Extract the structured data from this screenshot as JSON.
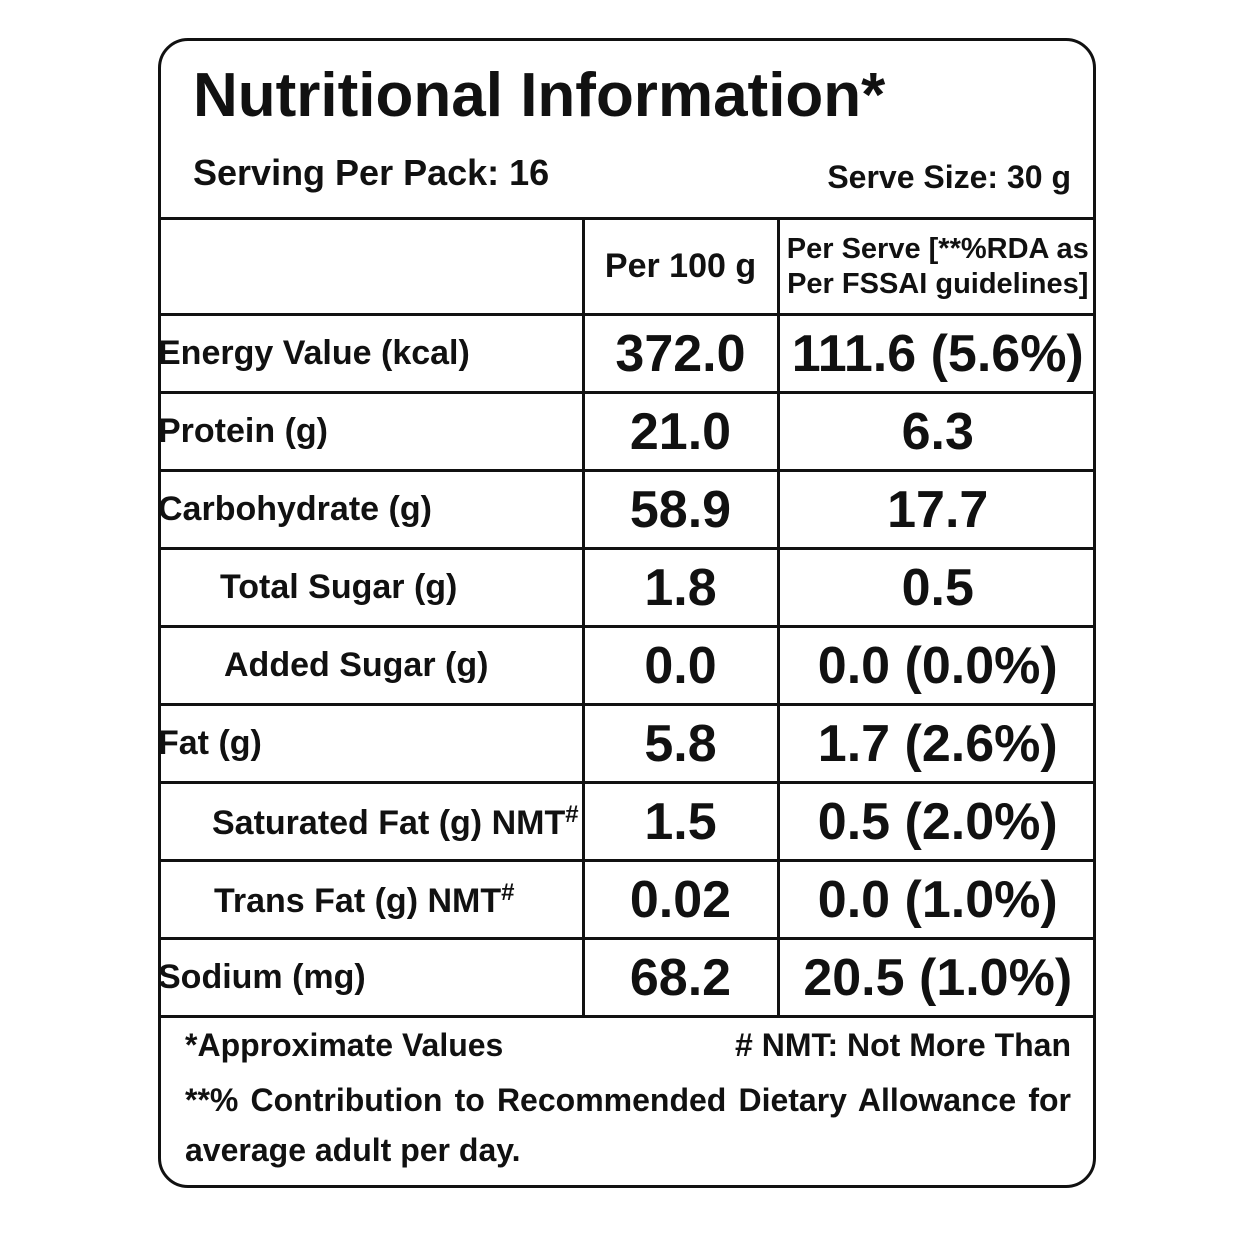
{
  "label": {
    "title": "Nutritional Information*",
    "serving_per_pack": "Serving Per Pack: 16",
    "serve_size": "Serve Size: 30 g"
  },
  "table": {
    "headers": {
      "name": "",
      "per_100g": "Per 100 g",
      "per_serve_line1": "Per Serve [**%RDA as",
      "per_serve_line2": "Per FSSAI guidelines]"
    },
    "rows": [
      {
        "name": "Energy Value (kcal)",
        "per_100g": "372.0",
        "per_serve": "111.6 (5.6%)"
      },
      {
        "name": "Protein (g)",
        "per_100g": "21.0",
        "per_serve": "6.3"
      },
      {
        "name": "Carbohydrate (g)",
        "per_100g": "58.9",
        "per_serve": "17.7"
      },
      {
        "name": "Total Sugar (g)",
        "per_100g": "1.8",
        "per_serve": "0.5"
      },
      {
        "name": "Added Sugar (g)",
        "per_100g": "0.0",
        "per_serve": "0.0 (0.0%)"
      },
      {
        "name": "Fat (g)",
        "per_100g": "5.8",
        "per_serve": "1.7 (2.6%)"
      },
      {
        "name": "Saturated Fat (g) NMT",
        "name_sup": "#",
        "per_100g": "1.5",
        "per_serve": "0.5 (2.0%)"
      },
      {
        "name": "Trans Fat (g) NMT",
        "name_sup": "#",
        "per_100g": "0.02",
        "per_serve": "0.0 (1.0%)"
      },
      {
        "name": "Sodium (mg)",
        "per_100g": "68.2",
        "per_serve": "20.5 (1.0%)"
      }
    ]
  },
  "footer": {
    "approx": "*Approximate Values",
    "nmt": "# NMT: Not More Than",
    "rda_note": "**% Contribution to Recommended Dietary Allowance for average adult per day."
  }
}
